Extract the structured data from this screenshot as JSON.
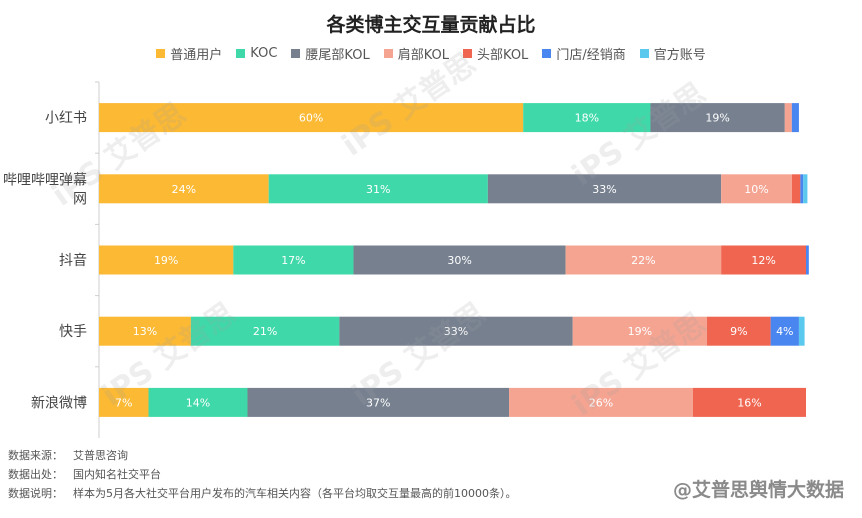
{
  "chart_data": {
    "type": "bar",
    "orientation": "horizontal",
    "stacked": true,
    "title": "各类博主交互量贡献占比",
    "categories": [
      "小红书",
      "哔哩哔哩弹幕网",
      "抖音",
      "快手",
      "新浪微博"
    ],
    "series": [
      {
        "name": "普通用户",
        "color": "#FBB934",
        "values": [
          60,
          24,
          19,
          13,
          7
        ],
        "labels": [
          "60%",
          "24%",
          "19%",
          "13%",
          "7%"
        ]
      },
      {
        "name": "KOC",
        "color": "#3FD8A8",
        "values": [
          18,
          31,
          17,
          21,
          14
        ],
        "labels": [
          "18%",
          "31%",
          "17%",
          "21%",
          "14%"
        ]
      },
      {
        "name": "腰尾部KOL",
        "color": "#76808F",
        "values": [
          19,
          33,
          30,
          33,
          37
        ],
        "labels": [
          "19%",
          "33%",
          "30%",
          "33%",
          "37%"
        ]
      },
      {
        "name": "肩部KOL",
        "color": "#F5A492",
        "values": [
          1,
          10,
          22,
          19,
          26
        ],
        "labels": [
          "",
          "10%",
          "22%",
          "19%",
          "26%"
        ]
      },
      {
        "name": "头部KOL",
        "color": "#EF6550",
        "values": [
          0,
          1.2,
          12,
          9,
          16
        ],
        "labels": [
          "",
          "",
          "12%",
          "9%",
          "16%"
        ]
      },
      {
        "name": "门店/经销商",
        "color": "#4A86F0",
        "values": [
          1,
          0.4,
          0.4,
          4,
          0
        ],
        "labels": [
          "",
          "",
          "",
          "4%",
          ""
        ]
      },
      {
        "name": "官方账号",
        "color": "#5BC8EE",
        "values": [
          0,
          0.6,
          0,
          0.8,
          0
        ],
        "labels": [
          "",
          "",
          "",
          "",
          ""
        ]
      }
    ],
    "xlim": [
      0,
      100
    ],
    "legend_position": "top"
  },
  "footnotes": [
    {
      "label": "数据来源：",
      "value": "艾普思咨询"
    },
    {
      "label": "数据出处：",
      "value": "国内知名社交平台"
    },
    {
      "label": "数据说明：",
      "value": "样本为5月各大社交平台用户发布的汽车相关内容（各平台均取交互量最高的前10000条）。"
    }
  ],
  "watermark": "@艾普思舆情大数据",
  "watermark_logo": "iPS 艾普思"
}
